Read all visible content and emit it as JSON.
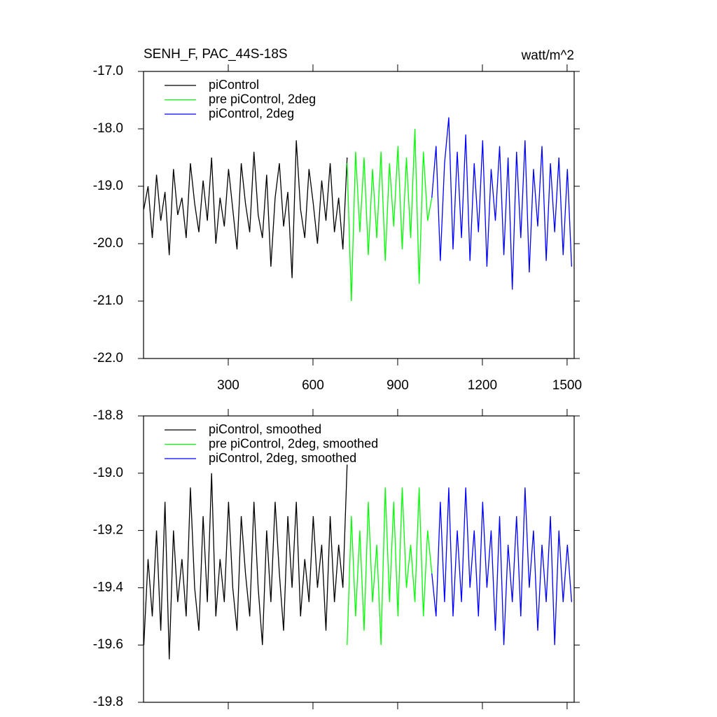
{
  "chart_data": [
    {
      "type": "line",
      "title": "SENH_F, PAC_44S-18S",
      "units": "watt/m^2",
      "xlim": [
        0,
        1525
      ],
      "xticks": [
        300,
        600,
        900,
        1200,
        1500
      ],
      "ylim": [
        -22,
        -17
      ],
      "yticks": [
        {
          "value": -22,
          "label": "-22.0"
        },
        {
          "value": -21,
          "label": "-21.0"
        },
        {
          "value": -20,
          "label": "-20.0"
        },
        {
          "value": -19,
          "label": "-19.0"
        },
        {
          "value": -18,
          "label": "-18.0"
        },
        {
          "value": -17,
          "label": "-17.0"
        }
      ],
      "legend": "top-left",
      "series": [
        {
          "name": "piControl",
          "color": "#000000",
          "x": [
            1,
            16,
            31,
            46,
            61,
            76,
            91,
            106,
            121,
            136,
            151,
            166,
            181,
            196,
            211,
            226,
            241,
            256,
            271,
            286,
            301,
            316,
            331,
            346,
            361,
            376,
            391,
            406,
            421,
            436,
            451,
            466,
            481,
            496,
            511,
            526,
            541,
            556,
            571,
            586,
            601,
            616,
            631,
            646,
            661,
            676,
            691,
            706,
            721
          ],
          "values": [
            -19.4,
            -19.0,
            -19.9,
            -18.8,
            -19.6,
            -19.1,
            -20.2,
            -18.7,
            -19.5,
            -19.2,
            -19.9,
            -18.6,
            -19.3,
            -19.8,
            -18.9,
            -19.6,
            -18.5,
            -20.0,
            -19.2,
            -19.7,
            -18.7,
            -19.4,
            -20.1,
            -18.6,
            -19.3,
            -19.8,
            -18.4,
            -19.5,
            -19.9,
            -18.8,
            -20.4,
            -19.2,
            -18.6,
            -19.7,
            -19.1,
            -20.6,
            -18.2,
            -19.4,
            -19.9,
            -18.7,
            -19.3,
            -20.0,
            -18.9,
            -19.6,
            -18.6,
            -19.8,
            -19.2,
            -20.1,
            -18.5
          ]
        },
        {
          "name": "pre piControl, 2deg",
          "color": "#00ff00",
          "x": [
            721,
            736,
            751,
            766,
            781,
            796,
            811,
            826,
            841,
            856,
            871,
            886,
            901,
            916,
            931,
            946,
            961,
            976,
            991,
            1006,
            1021
          ],
          "values": [
            -18.6,
            -21.0,
            -18.4,
            -19.8,
            -18.5,
            -20.2,
            -18.7,
            -19.9,
            -18.4,
            -20.3,
            -18.6,
            -19.7,
            -18.3,
            -20.1,
            -18.5,
            -19.9,
            -18.0,
            -20.7,
            -18.4,
            -19.6,
            -19.2
          ]
        },
        {
          "name": "piControl, 2deg",
          "color": "#0000ff",
          "x": [
            1021,
            1036,
            1051,
            1066,
            1081,
            1096,
            1111,
            1126,
            1141,
            1156,
            1171,
            1186,
            1201,
            1216,
            1231,
            1246,
            1261,
            1276,
            1291,
            1306,
            1321,
            1336,
            1351,
            1366,
            1381,
            1396,
            1411,
            1426,
            1441,
            1456,
            1471,
            1486,
            1501,
            1516
          ],
          "values": [
            -19.2,
            -18.3,
            -20.3,
            -18.6,
            -17.8,
            -20.1,
            -18.4,
            -19.9,
            -18.1,
            -20.3,
            -18.6,
            -19.8,
            -18.2,
            -20.4,
            -18.7,
            -19.6,
            -18.3,
            -20.2,
            -18.5,
            -20.8,
            -18.4,
            -19.9,
            -18.2,
            -20.5,
            -18.7,
            -19.7,
            -18.3,
            -20.3,
            -18.6,
            -19.8,
            -18.5,
            -20.2,
            -18.7,
            -20.4
          ]
        }
      ]
    },
    {
      "type": "line",
      "xlim": [
        0,
        1525
      ],
      "xticks": [
        300,
        600,
        900,
        1200,
        1500
      ],
      "ylim": [
        -19.8,
        -18.8
      ],
      "yticks": [
        -19.8,
        -19.6,
        -19.4,
        -19.2,
        {
          "value": -19,
          "label": "-19.0"
        },
        -18.8
      ],
      "legend": "top-left",
      "series": [
        {
          "name": "piControl, smoothed",
          "color": "#000000",
          "x": [
            1,
            16,
            31,
            46,
            61,
            76,
            91,
            106,
            121,
            136,
            151,
            166,
            181,
            196,
            211,
            226,
            241,
            256,
            271,
            286,
            301,
            316,
            331,
            346,
            361,
            376,
            391,
            406,
            421,
            436,
            451,
            466,
            481,
            496,
            511,
            526,
            541,
            556,
            571,
            586,
            601,
            616,
            631,
            646,
            661,
            676,
            691,
            706,
            721
          ],
          "values": [
            -19.6,
            -19.3,
            -19.5,
            -19.2,
            -19.55,
            -19.1,
            -19.65,
            -19.2,
            -19.45,
            -19.3,
            -19.5,
            -19.05,
            -19.4,
            -19.55,
            -19.15,
            -19.45,
            -19.0,
            -19.5,
            -19.3,
            -19.45,
            -19.1,
            -19.4,
            -19.55,
            -19.15,
            -19.35,
            -19.5,
            -19.1,
            -19.4,
            -19.6,
            -19.2,
            -19.45,
            -19.1,
            -19.35,
            -19.55,
            -19.15,
            -19.4,
            -19.1,
            -19.5,
            -19.3,
            -19.45,
            -19.15,
            -19.4,
            -19.25,
            -19.55,
            -19.15,
            -19.45,
            -19.25,
            -19.4,
            -18.97
          ]
        },
        {
          "name": "pre piControl, 2deg, smoothed",
          "color": "#00ff00",
          "x": [
            721,
            736,
            751,
            766,
            781,
            796,
            811,
            826,
            841,
            856,
            871,
            886,
            901,
            916,
            931,
            946,
            961,
            976,
            991,
            1006,
            1021
          ],
          "values": [
            -19.6,
            -19.15,
            -19.5,
            -19.2,
            -19.55,
            -19.1,
            -19.45,
            -19.25,
            -19.6,
            -19.05,
            -19.45,
            -19.1,
            -19.5,
            -19.05,
            -19.4,
            -19.25,
            -19.45,
            -19.05,
            -19.5,
            -19.2,
            -19.35
          ]
        },
        {
          "name": "piControl, 2deg, smoothed",
          "color": "#0000ff",
          "x": [
            1021,
            1036,
            1051,
            1066,
            1081,
            1096,
            1111,
            1126,
            1141,
            1156,
            1171,
            1186,
            1201,
            1216,
            1231,
            1246,
            1261,
            1276,
            1291,
            1306,
            1321,
            1336,
            1351,
            1366,
            1381,
            1396,
            1411,
            1426,
            1441,
            1456,
            1471,
            1486,
            1501,
            1516
          ],
          "values": [
            -19.35,
            -19.5,
            -19.1,
            -19.45,
            -19.05,
            -19.5,
            -19.2,
            -19.45,
            -19.05,
            -19.4,
            -19.2,
            -19.5,
            -19.1,
            -19.4,
            -19.2,
            -19.55,
            -19.15,
            -19.6,
            -19.25,
            -19.45,
            -19.15,
            -19.5,
            -19.05,
            -19.4,
            -19.2,
            -19.55,
            -19.25,
            -19.45,
            -19.15,
            -19.6,
            -19.2,
            -19.45,
            -19.25,
            -19.45
          ]
        }
      ]
    }
  ]
}
